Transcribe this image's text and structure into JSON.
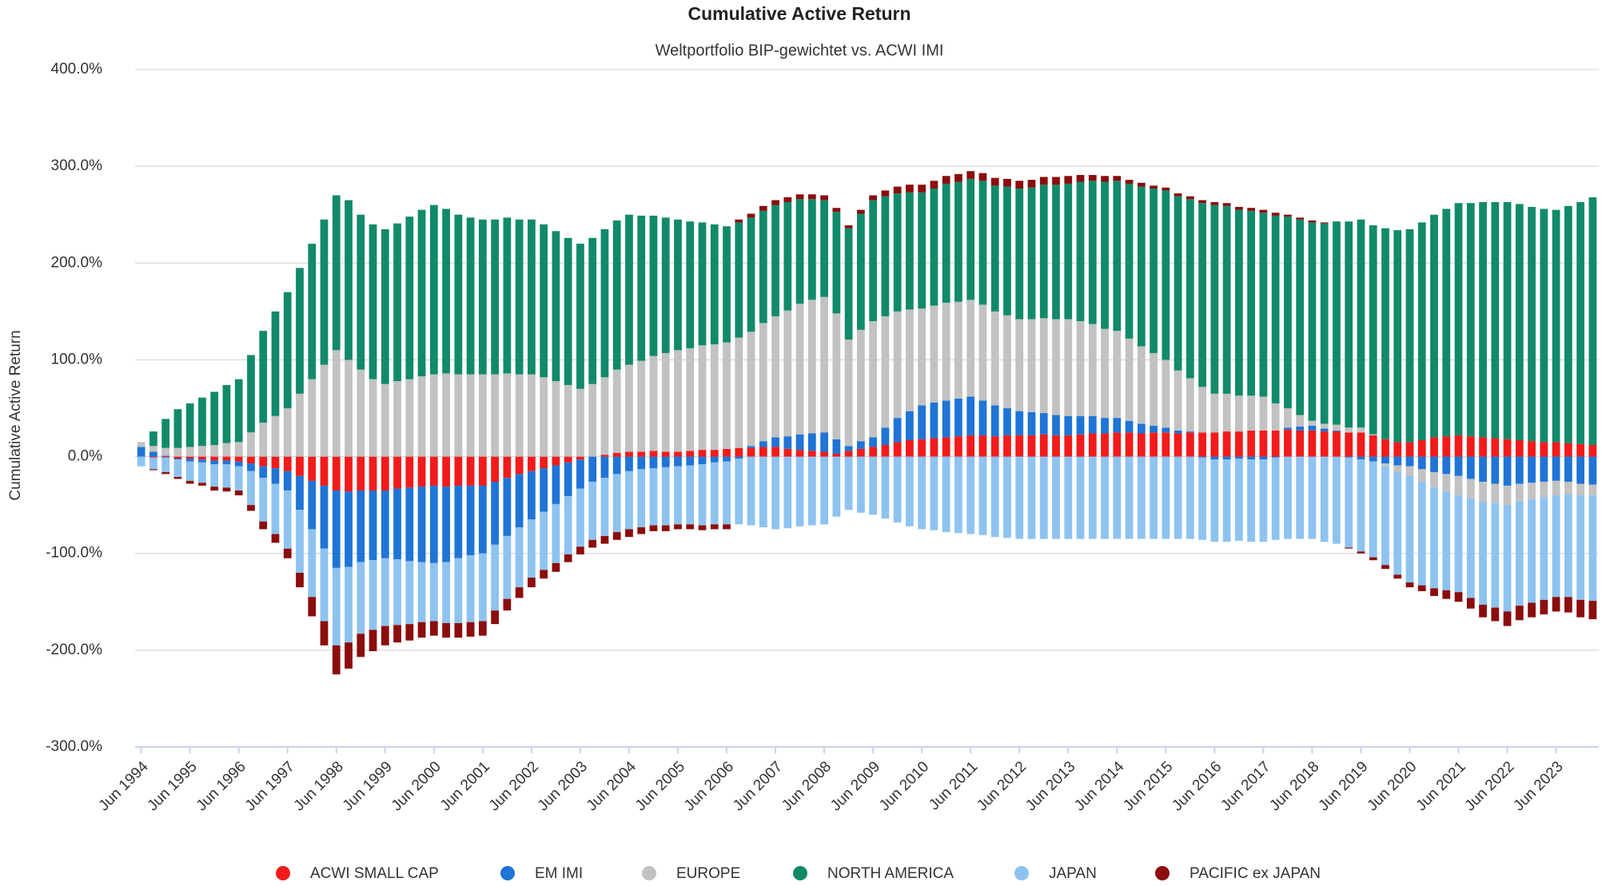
{
  "chart_data": {
    "type": "stacked_bar",
    "title": "Cumulative Active Return",
    "subtitle": "Weltportfolio BIP-gewichtet vs. ACWI IMI",
    "y_label": "Cumulative Active Return",
    "categories": [
      "Jun 1994",
      null,
      null,
      null,
      "Jun 1995",
      null,
      null,
      null,
      "Jun 1996",
      null,
      null,
      null,
      "Jun 1997",
      null,
      null,
      null,
      "Jun 1998",
      null,
      null,
      null,
      "Jun 1999",
      null,
      null,
      null,
      "Jun 2000",
      null,
      null,
      null,
      "Jun 2001",
      null,
      null,
      null,
      "Jun 2002",
      null,
      null,
      null,
      "Jun 2003",
      null,
      null,
      null,
      "Jun 2004",
      null,
      null,
      null,
      "Jun 2005",
      null,
      null,
      null,
      "Jun 2006",
      null,
      null,
      null,
      "Jun 2007",
      null,
      null,
      null,
      "Jun 2008",
      null,
      null,
      null,
      "Jun 2009",
      null,
      null,
      null,
      "Jun 2010",
      null,
      null,
      null,
      "Jun 2011",
      null,
      null,
      null,
      "Jun 2012",
      null,
      null,
      null,
      "Jun 2013",
      null,
      null,
      null,
      "Jun 2014",
      null,
      null,
      null,
      "Jun 2015",
      null,
      null,
      null,
      "Jun 2016",
      null,
      null,
      null,
      "Jun 2017",
      null,
      null,
      null,
      "Jun 2018",
      null,
      null,
      null,
      "Jun 2019",
      null,
      null,
      null,
      "Jun 2020",
      null,
      null,
      null,
      "Jun 2021",
      null,
      null,
      null,
      "Jun 2022",
      null,
      null,
      null,
      "Jun 2023",
      null,
      null,
      null
    ],
    "series": [
      {
        "name": "ACWI SMALL CAP",
        "color": "#f21b1b",
        "values": [
          0,
          -1,
          -1,
          -2,
          -2,
          -3,
          -4,
          -4,
          -5,
          -7,
          -10,
          -12,
          -15,
          -20,
          -25,
          -30,
          -35,
          -36,
          -35,
          -35,
          -35,
          -33,
          -32,
          -31,
          -30,
          -31,
          -30,
          -30,
          -30,
          -26,
          -22,
          -18,
          -15,
          -12,
          -9,
          -6,
          -3,
          0,
          2,
          4,
          5,
          5,
          6,
          5,
          5,
          6,
          7,
          7,
          8,
          9,
          9,
          10,
          10,
          8,
          7,
          6,
          5,
          3,
          6,
          8,
          10,
          12,
          15,
          17,
          18,
          19,
          20,
          21,
          22,
          22,
          21,
          22,
          22,
          22,
          23,
          22,
          22,
          23,
          24,
          24,
          25,
          25,
          24,
          25,
          25,
          24,
          25,
          25,
          25,
          26,
          26,
          27,
          27,
          27,
          28,
          27,
          27,
          26,
          26,
          25,
          25,
          22,
          18,
          15,
          15,
          17,
          20,
          21,
          22,
          21,
          20,
          19,
          18,
          17,
          16,
          15,
          15,
          14,
          13,
          12
        ]
      },
      {
        "name": "EM IMI",
        "color": "#1f74d6",
        "values": [
          10,
          5,
          1,
          -1,
          -3,
          -3,
          -4,
          -4,
          -5,
          -8,
          -12,
          -16,
          -20,
          -35,
          -50,
          -65,
          -80,
          -78,
          -74,
          -72,
          -70,
          -73,
          -76,
          -78,
          -80,
          -78,
          -75,
          -72,
          -70,
          -65,
          -60,
          -55,
          -50,
          -45,
          -40,
          -35,
          -30,
          -26,
          -22,
          -18,
          -15,
          -13,
          -12,
          -11,
          -10,
          -9,
          -8,
          -6,
          -5,
          -2,
          2,
          6,
          10,
          13,
          16,
          18,
          20,
          15,
          5,
          8,
          10,
          18,
          25,
          30,
          35,
          37,
          38,
          39,
          40,
          36,
          32,
          28,
          25,
          24,
          22,
          21,
          20,
          19,
          18,
          16,
          15,
          12,
          10,
          7,
          5,
          3,
          1,
          -1,
          -3,
          -3,
          -2,
          -3,
          -3,
          -1,
          2,
          4,
          5,
          3,
          1,
          -1,
          -3,
          -5,
          -7,
          -9,
          -10,
          -13,
          -16,
          -18,
          -20,
          -23,
          -26,
          -28,
          -30,
          -28,
          -27,
          -26,
          -25,
          -26,
          -28,
          -29
        ]
      },
      {
        "name": "EUROPE",
        "color": "#c2c2c2",
        "values": [
          5,
          6,
          8,
          9,
          10,
          11,
          12,
          14,
          15,
          25,
          35,
          42,
          50,
          65,
          80,
          95,
          110,
          100,
          90,
          80,
          75,
          78,
          80,
          83,
          85,
          86,
          85,
          85,
          85,
          85,
          86,
          85,
          85,
          82,
          78,
          74,
          70,
          75,
          80,
          86,
          90,
          94,
          98,
          102,
          105,
          106,
          108,
          109,
          110,
          114,
          118,
          122,
          125,
          130,
          135,
          138,
          140,
          130,
          110,
          115,
          120,
          115,
          110,
          105,
          100,
          100,
          101,
          100,
          100,
          99,
          97,
          96,
          95,
          96,
          98,
          99,
          100,
          98,
          95,
          92,
          90,
          85,
          80,
          75,
          70,
          62,
          55,
          47,
          40,
          39,
          37,
          36,
          35,
          28,
          20,
          12,
          5,
          5,
          6,
          5,
          5,
          1,
          -3,
          -7,
          -10,
          -13,
          -16,
          -18,
          -20,
          -20,
          -21,
          -20,
          -20,
          -18,
          -17,
          -16,
          -15,
          -13,
          -12,
          -11
        ]
      },
      {
        "name": "NORTH AMERICA",
        "color": "#118a6a",
        "values": [
          0,
          15,
          30,
          40,
          45,
          50,
          55,
          60,
          65,
          80,
          95,
          108,
          120,
          130,
          140,
          150,
          160,
          165,
          160,
          160,
          160,
          163,
          168,
          172,
          175,
          170,
          165,
          162,
          160,
          160,
          161,
          160,
          160,
          158,
          155,
          152,
          150,
          151,
          153,
          154,
          155,
          150,
          145,
          140,
          135,
          131,
          127,
          124,
          120,
          119,
          118,
          116,
          115,
          112,
          108,
          104,
          100,
          105,
          115,
          120,
          125,
          124,
          122,
          121,
          120,
          121,
          123,
          124,
          125,
          128,
          130,
          133,
          135,
          136,
          138,
          139,
          140,
          144,
          148,
          152,
          155,
          160,
          165,
          170,
          175,
          180,
          185,
          190,
          195,
          194,
          192,
          191,
          190,
          194,
          198,
          202,
          205,
          207,
          210,
          213,
          215,
          216,
          218,
          219,
          220,
          225,
          230,
          235,
          240,
          241,
          243,
          244,
          245,
          244,
          242,
          241,
          240,
          245,
          250,
          256
        ]
      },
      {
        "name": "JAPAN",
        "color": "#8ec3f0",
        "values": [
          -10,
          -12,
          -15,
          -18,
          -20,
          -21,
          -23,
          -24,
          -25,
          -35,
          -45,
          -52,
          -60,
          -65,
          -70,
          -75,
          -80,
          -78,
          -74,
          -72,
          -70,
          -68,
          -65,
          -62,
          -60,
          -63,
          -67,
          -69,
          -70,
          -68,
          -65,
          -62,
          -60,
          -60,
          -61,
          -60,
          -60,
          -60,
          -60,
          -60,
          -60,
          -60,
          -59,
          -60,
          -60,
          -61,
          -63,
          -64,
          -65,
          -68,
          -71,
          -73,
          -75,
          -74,
          -72,
          -71,
          -70,
          -62,
          -55,
          -58,
          -60,
          -64,
          -68,
          -72,
          -75,
          -76,
          -78,
          -79,
          -80,
          -81,
          -83,
          -84,
          -85,
          -85,
          -85,
          -85,
          -85,
          -85,
          -85,
          -85,
          -85,
          -85,
          -85,
          -85,
          -85,
          -85,
          -85,
          -85,
          -85,
          -85,
          -85,
          -85,
          -85,
          -85,
          -85,
          -85,
          -85,
          -88,
          -90,
          -93,
          -95,
          -99,
          -102,
          -106,
          -110,
          -107,
          -104,
          -102,
          -100,
          -103,
          -106,
          -108,
          -110,
          -108,
          -107,
          -106,
          -105,
          -106,
          -108,
          -109
        ]
      },
      {
        "name": "PACIFIC ex JAPAN",
        "color": "#8b0d0d",
        "values": [
          0,
          -1,
          -2,
          -2,
          -3,
          -3,
          -4,
          -4,
          -5,
          -6,
          -8,
          -9,
          -10,
          -15,
          -20,
          -25,
          -30,
          -27,
          -24,
          -22,
          -20,
          -18,
          -17,
          -16,
          -15,
          -15,
          -15,
          -15,
          -15,
          -14,
          -12,
          -11,
          -10,
          -9,
          -9,
          -8,
          -8,
          -8,
          -8,
          -8,
          -8,
          -7,
          -6,
          -6,
          -5,
          -5,
          -5,
          -5,
          -5,
          3,
          4,
          5,
          5,
          5,
          5,
          5,
          5,
          4,
          3,
          4,
          5,
          6,
          7,
          8,
          8,
          8,
          8,
          8,
          8,
          8,
          8,
          8,
          8,
          8,
          8,
          8,
          8,
          7,
          6,
          6,
          5,
          4,
          4,
          3,
          3,
          3,
          3,
          3,
          3,
          3,
          3,
          3,
          3,
          3,
          2,
          2,
          2,
          1,
          0,
          -1,
          -2,
          -3,
          -4,
          -4,
          -5,
          -6,
          -8,
          -9,
          -10,
          -11,
          -13,
          -14,
          -15,
          -15,
          -15,
          -15,
          -15,
          -16,
          -18,
          -19
        ]
      }
    ],
    "ylim": [
      -300,
      400
    ],
    "yticks": [
      {
        "value": -300,
        "label": "-300.0%"
      },
      {
        "value": -200,
        "label": "-200.0%"
      },
      {
        "value": -100,
        "label": "-100.0%"
      },
      {
        "value": 0,
        "label": "0.0%"
      },
      {
        "value": 100,
        "label": "100.0%"
      },
      {
        "value": 200,
        "label": "200.0%"
      },
      {
        "value": 300,
        "label": "300.0%"
      },
      {
        "value": 400,
        "label": "400.0%"
      }
    ],
    "grid": true,
    "legend": "bottom"
  }
}
